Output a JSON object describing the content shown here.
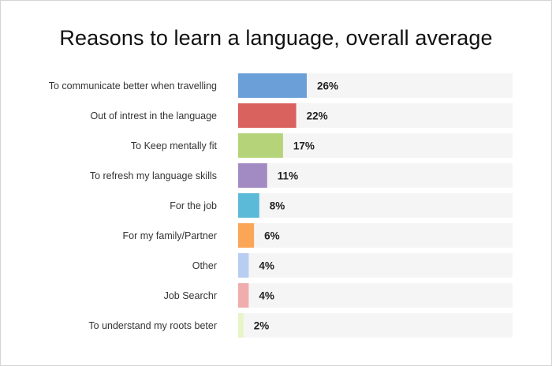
{
  "chart_data": {
    "type": "bar",
    "orientation": "horizontal",
    "title": "Reasons to learn a language, overall average",
    "categories": [
      "To communicate better when travelling",
      "Out of intrest in the language",
      "To Keep mentally fit",
      "To refresh my language skills",
      "For the job",
      "For my family/Partner",
      "Other",
      "Job Searchr",
      "To understand my roots beter"
    ],
    "values": [
      26,
      22,
      17,
      11,
      8,
      6,
      4,
      4,
      2
    ],
    "value_labels": [
      "26%",
      "22%",
      "17%",
      "11%",
      "8%",
      "6%",
      "4%",
      "4%",
      "2%"
    ],
    "unit": "%",
    "xlim": [
      0,
      100
    ],
    "colors": [
      "#6a9fd8",
      "#d9625e",
      "#b5d47a",
      "#a28ac2",
      "#5bbad8",
      "#fba656",
      "#b8cdf1",
      "#f0adad",
      "#e7f5c9"
    ],
    "track_color": "#f5f5f5",
    "grid": false,
    "legend": "none"
  }
}
